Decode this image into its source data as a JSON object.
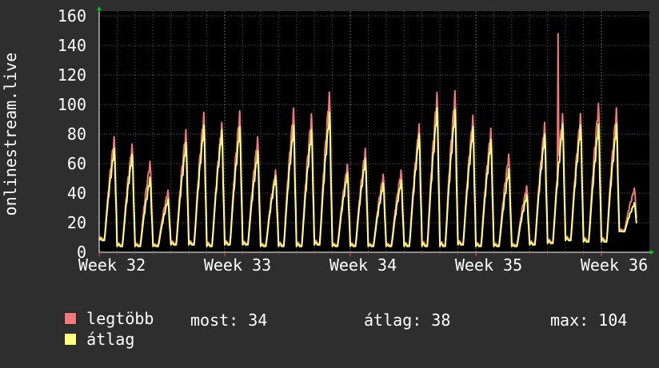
{
  "chart_data": {
    "type": "line",
    "ylabel": "onlinestream.live",
    "ylim": [
      0,
      160
    ],
    "yticks": [
      0,
      20,
      40,
      60,
      80,
      100,
      120,
      140,
      160
    ],
    "x_ticks": [
      "Week 32",
      "Week 33",
      "Week 34",
      "Week 35",
      "Week 36"
    ],
    "grid": true,
    "background": "#2e2e2e",
    "plot_background": "#000000",
    "grid_color": "#5a5a5a",
    "series": [
      {
        "name": "legtöbb",
        "color": "#f07a7a",
        "daily_peaks": [
          80,
          75,
          63,
          43,
          85,
          97,
          90,
          98,
          80,
          57,
          100,
          96,
          111,
          61,
          72,
          54,
          57,
          89,
          111,
          112,
          95,
          86,
          68,
          46,
          90,
          96,
          96,
          103,
          100,
          44
        ],
        "daily_lows": [
          9,
          5,
          5,
          5,
          6,
          6,
          5,
          6,
          6,
          5,
          5,
          5,
          6,
          5,
          5,
          5,
          5,
          5,
          5,
          5,
          6,
          5,
          5,
          5,
          6,
          7,
          9,
          8,
          8,
          15
        ],
        "spikes": [
          {
            "day": 25.6,
            "value": 148
          }
        ]
      },
      {
        "name": "átlag",
        "color": "#ffff80",
        "daily_peaks": [
          72,
          68,
          52,
          37,
          76,
          88,
          85,
          87,
          70,
          53,
          88,
          85,
          97,
          55,
          65,
          48,
          50,
          82,
          100,
          99,
          87,
          78,
          58,
          40,
          82,
          89,
          88,
          89,
          89,
          34
        ],
        "daily_lows": [
          8,
          4,
          4,
          4,
          5,
          5,
          4,
          5,
          5,
          4,
          4,
          4,
          5,
          4,
          4,
          4,
          4,
          4,
          4,
          4,
          5,
          4,
          4,
          4,
          5,
          6,
          8,
          7,
          7,
          14
        ]
      }
    ],
    "legend": [
      {
        "label": "legtöbb",
        "color": "#f07a7a"
      },
      {
        "label": "átlag",
        "color": "#ffff80"
      }
    ]
  },
  "stats": {
    "most": "most: 34",
    "atlag": "átlag: 38",
    "max": "max: 104"
  }
}
